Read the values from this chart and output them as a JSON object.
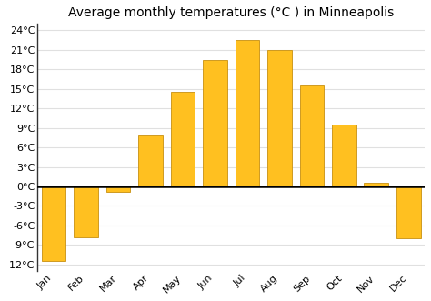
{
  "title": "Average monthly temperatures (°C ) in Minneapolis",
  "months": [
    "Jan",
    "Feb",
    "Mar",
    "Apr",
    "May",
    "Jun",
    "Jul",
    "Aug",
    "Sep",
    "Oct",
    "Nov",
    "Dec"
  ],
  "values": [
    -11.5,
    -7.8,
    -0.8,
    7.8,
    14.5,
    19.5,
    22.5,
    21.0,
    15.5,
    9.5,
    0.5,
    -8.0
  ],
  "bar_color": "#FFC020",
  "bar_edge_color": "#C89010",
  "ylim": [
    -13,
    25
  ],
  "yticks": [
    -12,
    -9,
    -6,
    -3,
    0,
    3,
    6,
    9,
    12,
    15,
    18,
    21,
    24
  ],
  "background_color": "#ffffff",
  "plot_bg_color": "#ffffff",
  "grid_color": "#e0e0e0",
  "title_fontsize": 10,
  "tick_fontsize": 8,
  "bar_width": 0.75
}
